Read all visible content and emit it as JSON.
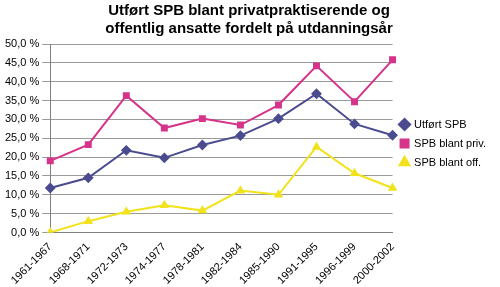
{
  "chart_data": {
    "type": "line",
    "title": [
      "Utført SPB blant privatpraktiserende og",
      "offentlig ansatte fordelt på utdanningsår"
    ],
    "categories": [
      "1961-1967",
      "1968-1971",
      "1972-1973",
      "1974-1977",
      "1978-1981",
      "1982-1984",
      "1985-1990",
      "1991-1995",
      "1996-1999",
      "2000-2002"
    ],
    "series": [
      {
        "name": "Utført SPB",
        "color": "#4b4b8f",
        "marker": "diamond",
        "values": [
          11.8,
          14.5,
          21.8,
          19.8,
          23.2,
          25.7,
          30.2,
          36.8,
          28.8,
          25.8
        ]
      },
      {
        "name": "SPB blant priv.",
        "color": "#d6338a",
        "marker": "square",
        "values": [
          19.0,
          23.3,
          36.3,
          27.7,
          30.2,
          28.5,
          33.8,
          44.2,
          34.7,
          45.8
        ]
      },
      {
        "name": "SPB blant off.",
        "color": "#f2e21b",
        "marker": "triangle",
        "values": [
          0.0,
          3.0,
          5.5,
          7.2,
          5.8,
          11.1,
          10.0,
          22.7,
          15.7,
          11.8
        ]
      }
    ],
    "ylim": [
      0,
      50
    ],
    "yticks": [
      {
        "value": 0,
        "label": "0,0 %"
      },
      {
        "value": 5,
        "label": "5,0 %"
      },
      {
        "value": 10,
        "label": "10,0 %"
      },
      {
        "value": 15,
        "label": "15,0 %"
      },
      {
        "value": 20,
        "label": "20,0 %"
      },
      {
        "value": 25,
        "label": "25,0 %"
      },
      {
        "value": 30,
        "label": "30,0 %"
      },
      {
        "value": 35,
        "label": "35,0 %"
      },
      {
        "value": 40,
        "label": "40,0 %"
      },
      {
        "value": 45,
        "label": "45,0 %"
      },
      {
        "value": 50,
        "label": "50,0 %"
      }
    ],
    "grid": true,
    "legend": "right"
  }
}
